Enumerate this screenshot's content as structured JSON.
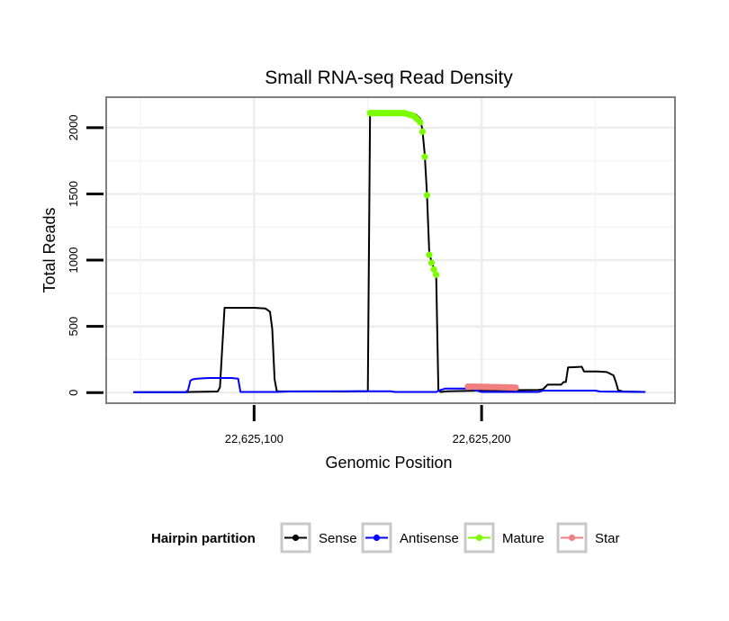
{
  "chart_data": {
    "type": "line",
    "title": "Small RNA-seq Read Density",
    "xlabel": "Genomic Position",
    "ylabel": "Total Reads",
    "xlim": [
      22625035,
      22625285
    ],
    "ylim": [
      -80,
      2230
    ],
    "x_ticks": [
      {
        "value": 22625100,
        "label": "22,625,100"
      },
      {
        "value": 22625200,
        "label": "22,625,200"
      }
    ],
    "y_ticks": [
      {
        "value": 0,
        "label": "0"
      },
      {
        "value": 500,
        "label": "500"
      },
      {
        "value": 1000,
        "label": "1000"
      },
      {
        "value": 1500,
        "label": "1500"
      },
      {
        "value": 2000,
        "label": "2000"
      }
    ],
    "grid": true,
    "legend": {
      "title": "Hairpin partition",
      "position": "bottom",
      "entries": [
        {
          "name": "Sense",
          "color": "#000000"
        },
        {
          "name": "Antisense",
          "color": "#0000ff"
        },
        {
          "name": "Mature",
          "color": "#7cfc00"
        },
        {
          "name": "Star",
          "color": "#f08080"
        }
      ]
    },
    "series": [
      {
        "name": "Sense",
        "color": "#000000",
        "style": "line",
        "points": [
          [
            22625047,
            3
          ],
          [
            22625070,
            3
          ],
          [
            22625072,
            5
          ],
          [
            22625084,
            8
          ],
          [
            22625085,
            40
          ],
          [
            22625087,
            640
          ],
          [
            22625100,
            640
          ],
          [
            22625105,
            635
          ],
          [
            22625107,
            610
          ],
          [
            22625108,
            480
          ],
          [
            22625109,
            100
          ],
          [
            22625110,
            10
          ],
          [
            22625140,
            8
          ],
          [
            22625145,
            10
          ],
          [
            22625150,
            10
          ],
          [
            22625151,
            2110
          ],
          [
            22625162,
            2110
          ],
          [
            22625168,
            2105
          ],
          [
            22625171,
            2100
          ],
          [
            22625173,
            2070
          ],
          [
            22625174,
            1980
          ],
          [
            22625175,
            1800
          ],
          [
            22625176,
            1500
          ],
          [
            22625177,
            1050
          ],
          [
            22625178,
            990
          ],
          [
            22625179,
            940
          ],
          [
            22625180,
            900
          ],
          [
            22625181,
            20
          ],
          [
            22625182,
            5
          ],
          [
            22625185,
            10
          ],
          [
            22625190,
            12
          ],
          [
            22625195,
            14
          ],
          [
            22625200,
            16
          ],
          [
            22625210,
            18
          ],
          [
            22625225,
            20
          ],
          [
            22625227,
            25
          ],
          [
            22625229,
            60
          ],
          [
            22625235,
            60
          ],
          [
            22625236,
            80
          ],
          [
            22625237,
            80
          ],
          [
            22625238,
            190
          ],
          [
            22625244,
            195
          ],
          [
            22625245,
            160
          ],
          [
            22625251,
            160
          ],
          [
            22625255,
            155
          ],
          [
            22625258,
            130
          ],
          [
            22625259,
            80
          ],
          [
            22625260,
            20
          ],
          [
            22625262,
            8
          ],
          [
            22625272,
            5
          ]
        ]
      },
      {
        "name": "Antisense",
        "color": "#0000ff",
        "style": "line",
        "points": [
          [
            22625047,
            3
          ],
          [
            22625070,
            3
          ],
          [
            22625071,
            20
          ],
          [
            22625072,
            90
          ],
          [
            22625073,
            100
          ],
          [
            22625075,
            105
          ],
          [
            22625080,
            110
          ],
          [
            22625090,
            110
          ],
          [
            22625093,
            105
          ],
          [
            22625094,
            5
          ],
          [
            22625110,
            5
          ],
          [
            22625115,
            8
          ],
          [
            22625140,
            10
          ],
          [
            22625160,
            10
          ],
          [
            22625162,
            5
          ],
          [
            22625180,
            5
          ],
          [
            22625182,
            20
          ],
          [
            22625184,
            30
          ],
          [
            22625195,
            30
          ],
          [
            22625200,
            5
          ],
          [
            22625215,
            5
          ],
          [
            22625225,
            5
          ],
          [
            22625227,
            15
          ],
          [
            22625250,
            15
          ],
          [
            22625252,
            8
          ],
          [
            22625272,
            5
          ]
        ]
      },
      {
        "name": "Mature",
        "color": "#7cfc00",
        "style": "points",
        "points": [
          [
            22625151,
            2110
          ],
          [
            22625152,
            2110
          ],
          [
            22625153,
            2110
          ],
          [
            22625154,
            2110
          ],
          [
            22625155,
            2110
          ],
          [
            22625156,
            2110
          ],
          [
            22625157,
            2110
          ],
          [
            22625158,
            2110
          ],
          [
            22625159,
            2110
          ],
          [
            22625160,
            2110
          ],
          [
            22625161,
            2110
          ],
          [
            22625162,
            2110
          ],
          [
            22625163,
            2110
          ],
          [
            22625164,
            2110
          ],
          [
            22625165,
            2110
          ],
          [
            22625166,
            2110
          ],
          [
            22625167,
            2105
          ],
          [
            22625168,
            2100
          ],
          [
            22625169,
            2095
          ],
          [
            22625170,
            2090
          ],
          [
            22625171,
            2075
          ],
          [
            22625172,
            2060
          ],
          [
            22625173,
            2040
          ],
          [
            22625174,
            1970
          ],
          [
            22625175,
            1780
          ],
          [
            22625176,
            1490
          ],
          [
            22625177,
            1040
          ],
          [
            22625178,
            980
          ],
          [
            22625179,
            930
          ],
          [
            22625180,
            890
          ]
        ]
      },
      {
        "name": "Star",
        "color": "#f08080",
        "style": "points",
        "points": [
          [
            22625194,
            45
          ],
          [
            22625195,
            45
          ],
          [
            22625196,
            45
          ],
          [
            22625197,
            45
          ],
          [
            22625198,
            44
          ],
          [
            22625199,
            44
          ],
          [
            22625200,
            44
          ],
          [
            22625201,
            43
          ],
          [
            22625202,
            43
          ],
          [
            22625203,
            43
          ],
          [
            22625204,
            42
          ],
          [
            22625205,
            42
          ],
          [
            22625206,
            42
          ],
          [
            22625207,
            41
          ],
          [
            22625208,
            41
          ],
          [
            22625209,
            40
          ],
          [
            22625210,
            40
          ],
          [
            22625211,
            40
          ],
          [
            22625212,
            39
          ],
          [
            22625213,
            38
          ],
          [
            22625214,
            38
          ],
          [
            22625215,
            37
          ]
        ]
      }
    ]
  }
}
